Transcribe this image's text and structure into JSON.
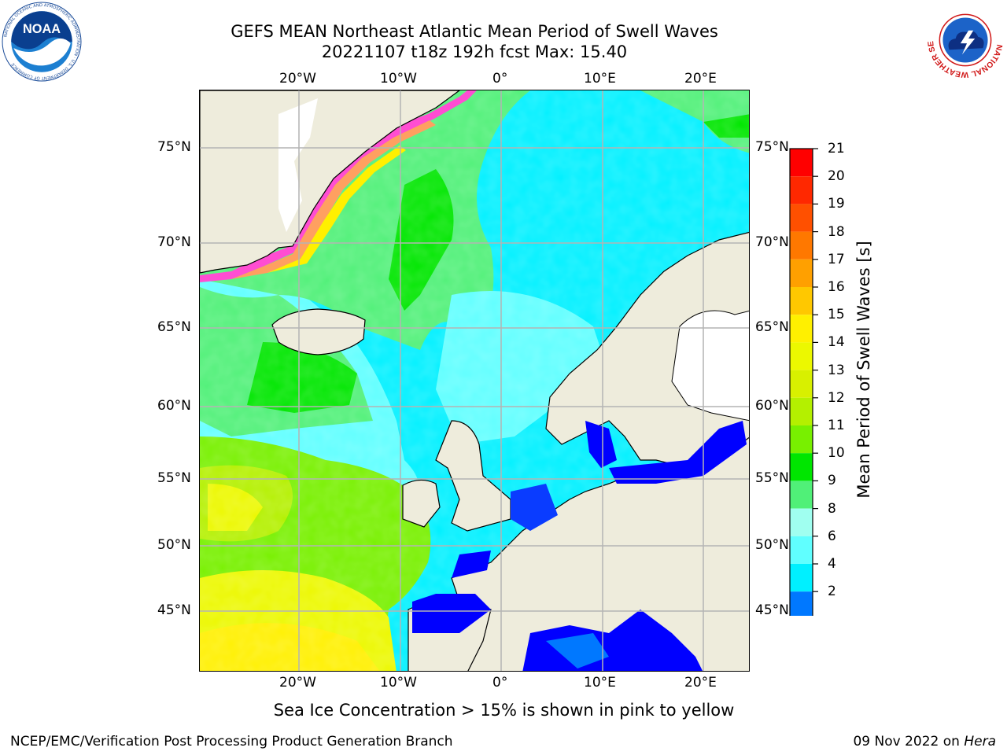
{
  "title": {
    "line1": "GEFS MEAN Northeast Atlantic Mean Period of Swell Waves",
    "line2": "20221107 t18z 192h fcst   Max: 15.40"
  },
  "logos": {
    "left": {
      "name": "noaa-logo",
      "text": "NOAA",
      "ring_text": "NATIONAL OCEANIC AND ATMOSPHERIC ADMINISTRATION · U.S. DEPARTMENT OF COMMERCE"
    },
    "right": {
      "name": "nws-logo",
      "ring_text": "NATIONAL WEATHER SERVICE"
    }
  },
  "map": {
    "lon_ticks_top": [
      "20°W",
      "10°W",
      "0°",
      "10°E",
      "20°E"
    ],
    "lon_ticks_bottom": [
      "20°W",
      "10°W",
      "0°",
      "10°E",
      "20°E"
    ],
    "lat_ticks_left": [
      "75°N",
      "70°N",
      "65°N",
      "60°N",
      "55°N",
      "50°N",
      "45°N"
    ],
    "lat_ticks_right": [
      "75°N",
      "70°N",
      "65°N",
      "60°N",
      "55°N",
      "50°N",
      "45°N"
    ],
    "land_color": "#eeecdc",
    "gridline_color": "#b4b4b4"
  },
  "colorbar": {
    "title": "Mean Period of Swell Waves [s]",
    "labels": [
      "21",
      "20",
      "19",
      "18",
      "17",
      "16",
      "15",
      "14",
      "13",
      "12",
      "11",
      "10",
      "9",
      "8",
      "6",
      "4",
      "2"
    ],
    "colors_top_to_bottom": [
      "#ff0000",
      "#ff2800",
      "#ff5000",
      "#ff7800",
      "#ffa000",
      "#ffc800",
      "#fff000",
      "#ecf800",
      "#d8f000",
      "#b4f000",
      "#78f000",
      "#00e600",
      "#50f078",
      "#a0fff0",
      "#60ffff",
      "#00f0ff",
      "#0078ff"
    ],
    "extend_color": "#0000ff"
  },
  "footnote": "Sea Ice Concentration > 15% is shown in pink to yellow",
  "credits": {
    "left": "NCEP/EMC/Verification Post Processing Product Generation Branch",
    "right_date": "09 Nov 2022 on ",
    "right_host": "Hera"
  }
}
